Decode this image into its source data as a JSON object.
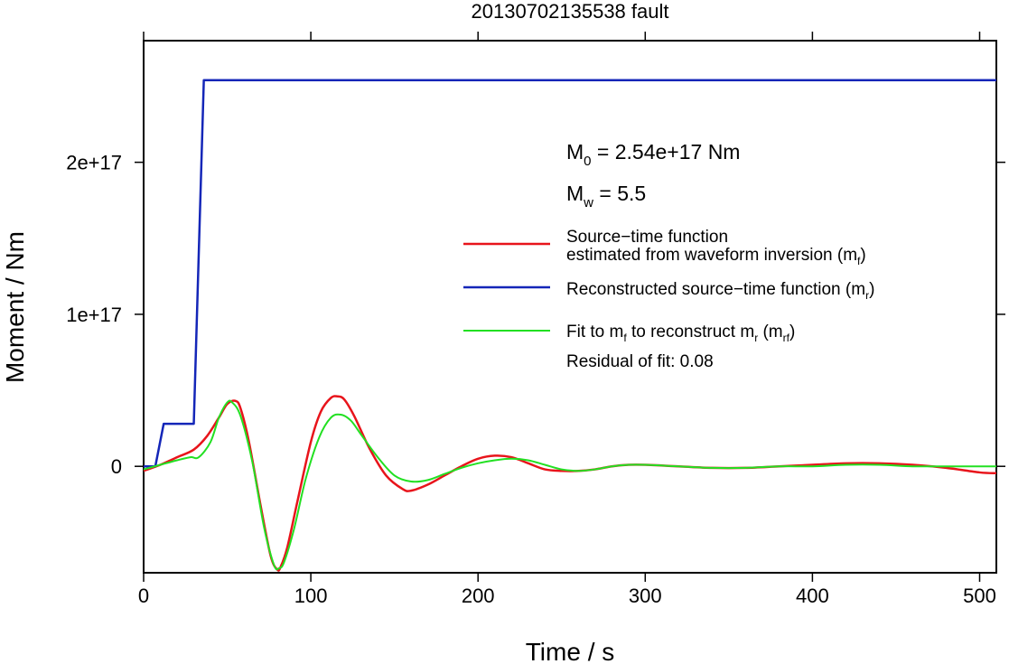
{
  "chart_data": {
    "type": "line",
    "title": "20130702135538 fault",
    "xlabel": "Time / s",
    "ylabel": "Moment / Nm",
    "xlim": [
      0,
      510
    ],
    "ylim": [
      -7e+16,
      2.8e+17
    ],
    "grid": false,
    "x_ticks": [
      0,
      100,
      200,
      300,
      400,
      500
    ],
    "x_tick_labels": [
      "0",
      "100",
      "200",
      "300",
      "400",
      "500"
    ],
    "y_ticks": [
      0,
      1e+17,
      2e+17
    ],
    "y_tick_labels": [
      "0",
      "1e+17",
      "2e+17"
    ],
    "annotations": {
      "m0": {
        "main": "M",
        "sub": "0",
        "rest": " = 2.54e+17 Nm"
      },
      "mw": {
        "main": "M",
        "sub": "w",
        "rest": " = 5.5"
      },
      "residual": "Residual of fit: 0.08"
    },
    "legend": {
      "placement": "right",
      "entries": [
        {
          "series": "mf",
          "color": "#e8141b",
          "line1": "Source−time function",
          "line2a": "estimated from waveform inversion (m",
          "line2sub": "f",
          "line2b": ")"
        },
        {
          "series": "mr",
          "color": "#1426b8",
          "text1": "Reconstructed source−time function (m",
          "sub1": "r",
          "text2": ")"
        },
        {
          "series": "mrf",
          "color": "#22e022",
          "text1": "Fit to m",
          "sub1": "f",
          "text2": " to reconstruct m",
          "sub2": "r",
          "text3": " (m",
          "sub3": "rf",
          "text4": ")"
        }
      ]
    },
    "series": [
      {
        "key": "mf",
        "color": "#e8141b",
        "x": [
          0,
          10,
          20,
          30,
          38,
          45,
          50,
          55,
          58,
          63,
          70,
          76,
          80,
          82,
          86,
          92,
          100,
          106,
          112,
          116,
          120,
          126,
          135,
          145,
          155,
          160,
          170,
          180,
          190,
          200,
          210,
          220,
          230,
          240,
          250,
          260,
          270,
          280,
          290,
          300,
          320,
          340,
          360,
          380,
          400,
          420,
          440,
          460,
          480,
          500,
          510
        ],
        "y": [
          -3000000000000000.0,
          1000000000000000.0,
          6000000000000000.0,
          1.1e+16,
          2e+16,
          3.2e+16,
          4.1e+16,
          4.3e+16,
          3.8e+16,
          1.6e+16,
          -2.6e+16,
          -5.9e+16,
          -6.8e+16,
          -6.6e+16,
          -5.3e+16,
          -2.3e+16,
          1.6e+16,
          3.6e+16,
          4.5e+16,
          4.6e+16,
          4.4e+16,
          3.3e+16,
          1.2e+16,
          -6000000000000000.0,
          -1.5e+16,
          -1.6e+16,
          -1.2e+16,
          -6000000000000000.0,
          0,
          5000000000000000.0,
          7000000000000000.0,
          6000000000000000.0,
          2000000000000000.0,
          -2000000000000000.0,
          -3000000000000000.0,
          -3000000000000000.0,
          -2000000000000000.0,
          0,
          1000000000000000.0,
          1000000000000000.0,
          0,
          -1000000000000000.0,
          -1000000000000000.0,
          0,
          1000000000000000.0,
          2000000000000000.0,
          2000000000000000.0,
          1000000000000000.0,
          -1000000000000000.0,
          -4000000000000000.0,
          -4500000000000000.0
        ]
      },
      {
        "key": "mr",
        "color": "#1426b8",
        "x": [
          0,
          7,
          12,
          30,
          36,
          510
        ],
        "y": [
          0,
          0,
          2.8e+16,
          2.8e+16,
          2.54e+17,
          2.54e+17
        ]
      },
      {
        "key": "mrf",
        "color": "#22e022",
        "x": [
          0,
          10,
          20,
          28,
          33,
          40,
          45,
          50,
          53,
          58,
          65,
          72,
          78,
          81,
          84,
          90,
          97,
          105,
          112,
          118,
          124,
          130,
          140,
          150,
          160,
          170,
          180,
          190,
          200,
          210,
          220,
          230,
          240,
          250,
          260,
          270,
          280,
          290,
          300,
          320,
          340,
          360,
          380,
          400,
          420,
          440,
          460,
          480,
          510
        ],
        "y": [
          -2000000000000000.0,
          1000000000000000.0,
          4000000000000000.0,
          6000000000000000.0,
          6000000000000000.0,
          1.6e+16,
          3.2e+16,
          4.2e+16,
          4.2e+16,
          3.3e+16,
          3000000000000000.0,
          -4e+16,
          -6.5e+16,
          -6.7e+16,
          -6.3e+16,
          -4.1e+16,
          -8000000000000000.0,
          1.9e+16,
          3.2e+16,
          3.4e+16,
          3e+16,
          2.1e+16,
          6000000000000000.0,
          -6000000000000000.0,
          -1e+16,
          -9000000000000000.0,
          -5000000000000000.0,
          -1000000000000000.0,
          2000000000000000.0,
          4000000000000000.0,
          5000000000000000.0,
          4000000000000000.0,
          1000000000000000.0,
          -2000000000000000.0,
          -3000000000000000.0,
          -2000000000000000.0,
          0,
          1000000000000000.0,
          1000000000000000.0,
          0,
          -1000000000000000.0,
          -1000000000000000.0,
          0,
          0,
          1000000000000000.0,
          1000000000000000.0,
          0,
          0,
          0
        ]
      }
    ]
  }
}
